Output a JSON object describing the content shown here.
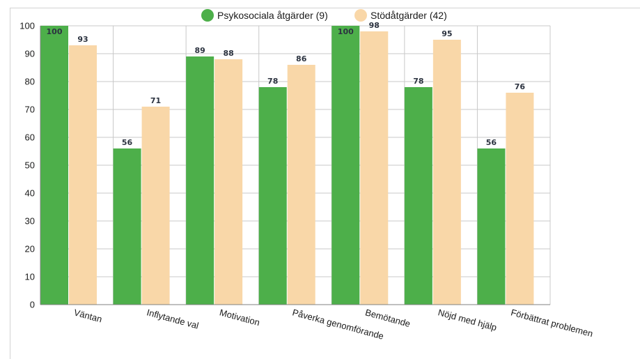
{
  "chart_data": {
    "type": "bar",
    "categories": [
      "Väntan",
      "Inflytande val",
      "Motivation",
      "Påverka genomförande",
      "Bemötande",
      "Nöjd med hjälp",
      "Förbättrat problemen"
    ],
    "series": [
      {
        "name": "Psykosociala åtgärder (9)",
        "color": "#4daf4a",
        "values": [
          100,
          56,
          89,
          78,
          100,
          78,
          56
        ]
      },
      {
        "name": "Stödåtgärder (42)",
        "color": "#f9d7a8",
        "values": [
          93,
          71,
          88,
          86,
          98,
          95,
          76
        ]
      }
    ],
    "ylim": [
      0,
      100
    ],
    "yticks": [
      "0",
      "10",
      "20",
      "30",
      "40",
      "50",
      "60",
      "70",
      "80",
      "90",
      "100"
    ],
    "grid": true,
    "legend_position": "top",
    "data_labels": true
  }
}
